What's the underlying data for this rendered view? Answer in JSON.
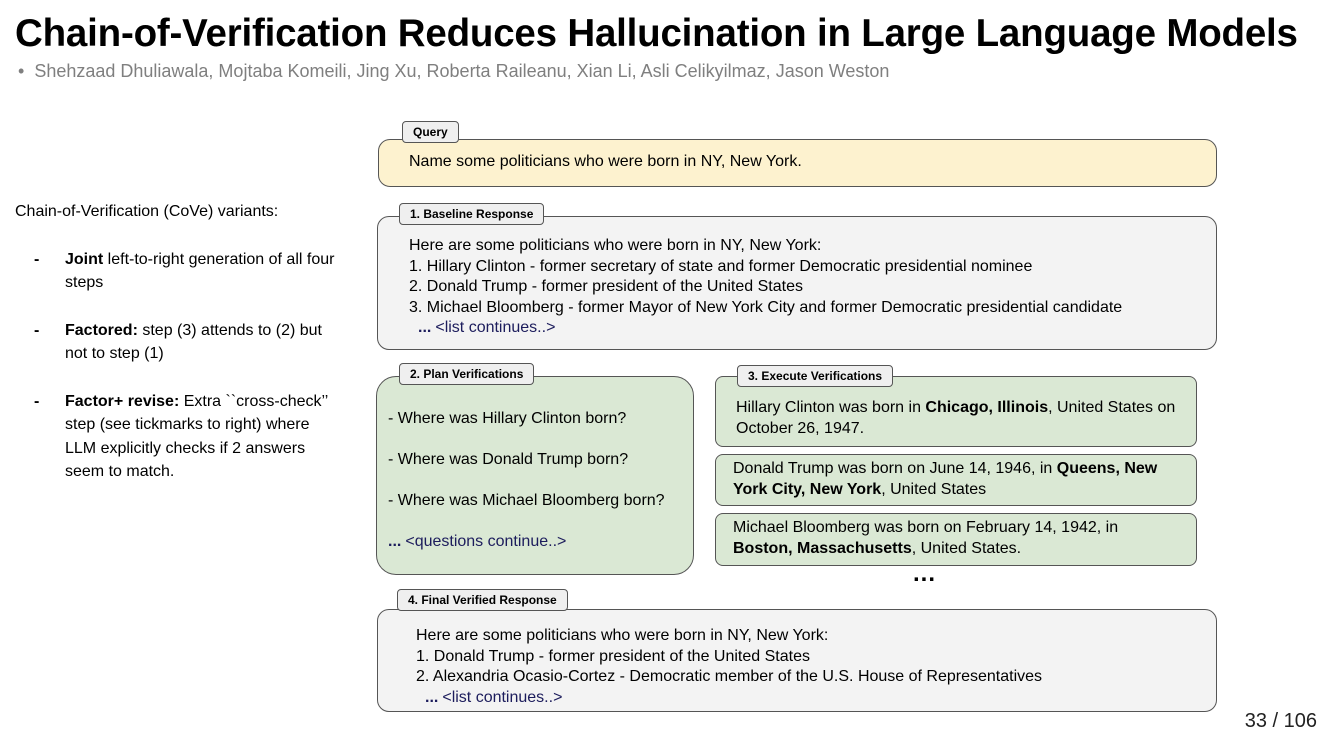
{
  "title": "Chain-of-Verification Reduces Hallucination in Large Language Models",
  "authors": {
    "marker": "•",
    "text": "Shehzaad Dhuliawala, Mojtaba Komeili, Jing Xu, Roberta Raileanu, Xian Li, Asli Celikyilmaz, Jason Weston"
  },
  "sidebar": {
    "intro": "Chain-of-Verification (CoVe) variants:",
    "items": [
      {
        "marker": "-",
        "label": "Joint",
        "text": " left-to-right generation of all four steps"
      },
      {
        "marker": "-",
        "label": "Factored:",
        "text": " step (3) attends to (2) but not to step (1)"
      },
      {
        "marker": "-",
        "label": "Factor+ revise:",
        "text": " Extra ``cross-check’’ step (see tickmarks to right) where LLM explicitly checks if 2 answers seem to match."
      }
    ]
  },
  "diagram": {
    "query": {
      "tag": "Query",
      "text": "Name some politicians who were born in NY, New York."
    },
    "baseline": {
      "tag": "1. Baseline Response",
      "lines": [
        "Here are some politicians who were born in NY, New York:",
        "1. Hillary Clinton - former secretary of state and former Democratic presidential nominee",
        "2. Donald Trump - former president of the United States",
        "3. Michael Bloomberg - former Mayor of New York City and former Democratic presidential candidate"
      ],
      "ellipsis": "...",
      "more": "<list continues..>"
    },
    "plan": {
      "tag": "2. Plan Verifications",
      "questions": [
        "- Where was Hillary Clinton born?",
        "- Where was Donald Trump born?",
        "- Where was Michael Bloomberg born?"
      ],
      "ellipsis": "...",
      "more": "<questions continue..>"
    },
    "execute": {
      "tag": "3. Execute Verifications",
      "answers": [
        [
          {
            "text": "Hillary Clinton was born in ",
            "bold": false
          },
          {
            "text": "Chicago, Illinois",
            "bold": true
          },
          {
            "text": ", United States on October 26, 1947.",
            "bold": false
          }
        ],
        [
          {
            "text": "Donald Trump was born on June 14, 1946, in ",
            "bold": false
          },
          {
            "text": "Queens, New York City, New York",
            "bold": true
          },
          {
            "text": ", United States",
            "bold": false
          }
        ],
        [
          {
            "text": "Michael Bloomberg was born on February 14, 1942, in ",
            "bold": false
          },
          {
            "text": "Boston, Massachusetts",
            "bold": true
          },
          {
            "text": ", United States.",
            "bold": false
          }
        ]
      ],
      "ellipsis": "..."
    },
    "final": {
      "tag": "4. Final Verified Response",
      "lines": [
        "Here are some politicians who were born in NY, New York:",
        "1. Donald Trump - former president of the United States",
        "2. Alexandria Ocasio-Cortez - Democratic member of the U.S. House of Representatives"
      ],
      "ellipsis": "...",
      "more": "<list continues..>"
    }
  },
  "page_number": "33 / 106"
}
